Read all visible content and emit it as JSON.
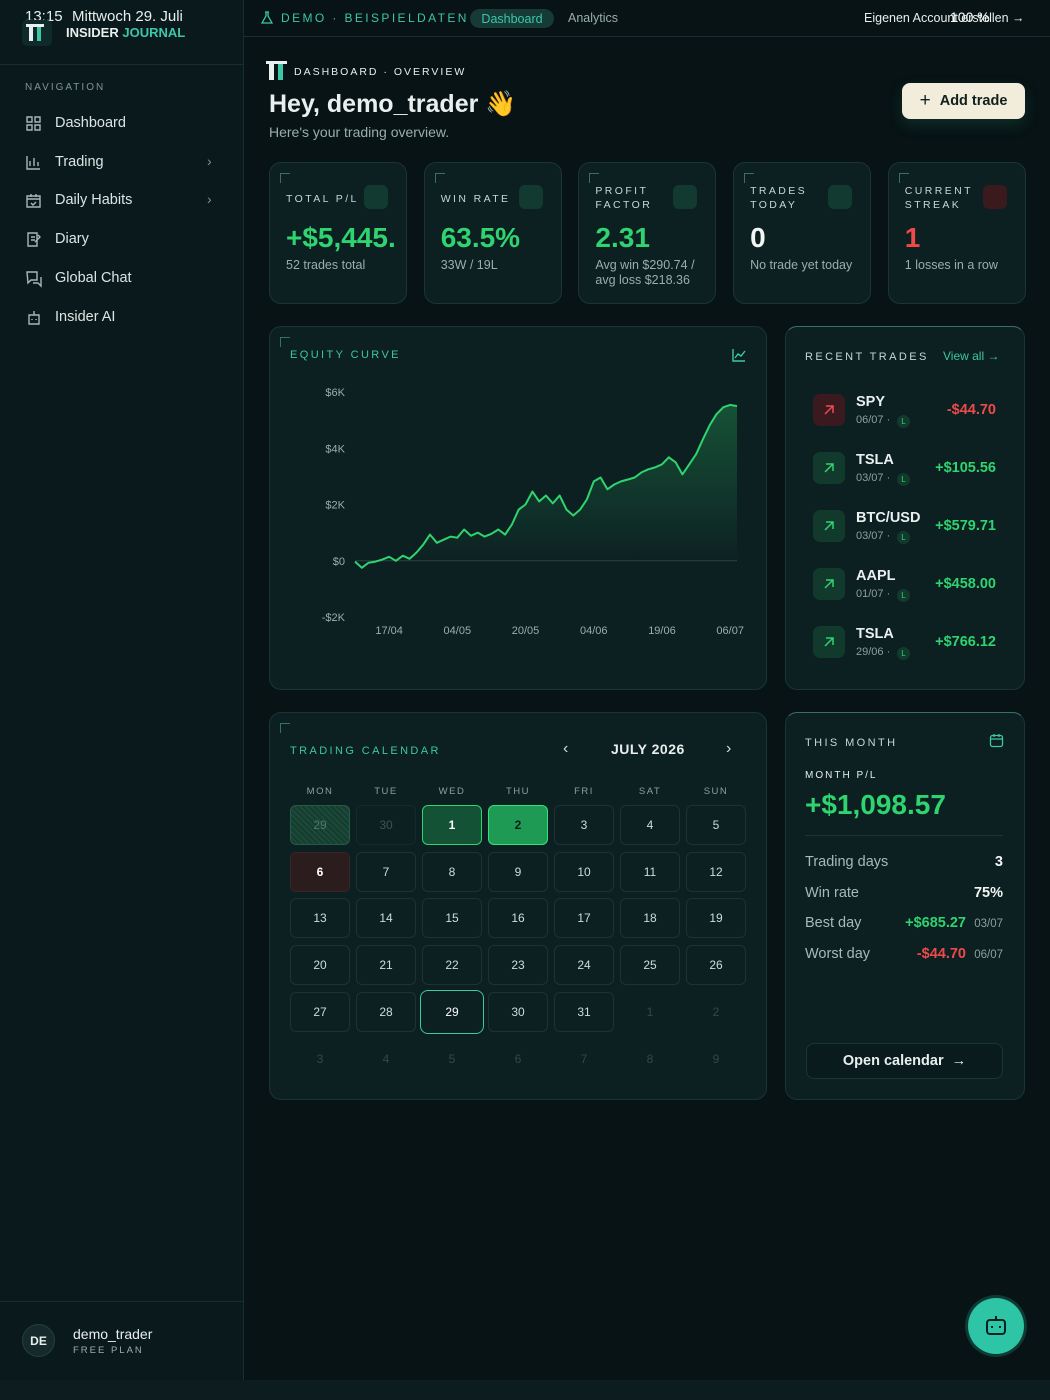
{
  "status": {
    "time": "13:15",
    "date": "Mittwoch 29. Juli",
    "battery": "100 %"
  },
  "brand": {
    "first": "INSIDER",
    "second": "JOURNAL"
  },
  "nav": {
    "section": "NAVIGATION",
    "items": [
      "Dashboard",
      "Trading",
      "Daily Habits",
      "Diary",
      "Global Chat",
      "Insider AI"
    ]
  },
  "user": {
    "initials": "DE",
    "name": "demo_trader",
    "plan": "FREE PLAN"
  },
  "topbar": {
    "demo": "DEMO · BEISPIELDATEN",
    "tabs": [
      "Dashboard",
      "Analytics"
    ],
    "account": "Eigenen Account erstellen"
  },
  "header": {
    "breadcrumb": "DASHBOARD · OVERVIEW",
    "greeting": "Hey, demo_trader 👋",
    "subtitle": "Here's your trading overview.",
    "button": "Add trade"
  },
  "stats": [
    {
      "label": "TOTAL P/L",
      "value": "+$5,445.",
      "sub": "52 trades total",
      "tone": "green"
    },
    {
      "label": "WIN RATE",
      "value": "63.5%",
      "sub": "33W / 19L",
      "tone": "green"
    },
    {
      "label": "PROFIT FACTOR",
      "value": "2.31",
      "sub": "Avg win $290.74 / avg loss $218.36",
      "tone": "green"
    },
    {
      "label": "TRADES TODAY",
      "value": "0",
      "sub": "No trade yet today",
      "tone": "white"
    },
    {
      "label": "CURRENT STREAK",
      "value": "1",
      "sub": "1 losses in a row",
      "tone": "red"
    }
  ],
  "chart_data": {
    "type": "line",
    "title": "EQUITY CURVE",
    "categories": [
      null,
      null,
      null,
      null,
      null,
      "17/04",
      null,
      null,
      null,
      null,
      null,
      null,
      null,
      null,
      null,
      "04/05",
      null,
      null,
      null,
      null,
      null,
      null,
      null,
      null,
      null,
      "20/05",
      null,
      null,
      null,
      null,
      null,
      null,
      null,
      null,
      null,
      "04/06",
      null,
      null,
      null,
      null,
      null,
      null,
      null,
      null,
      null,
      "19/06",
      null,
      null,
      null,
      null,
      null,
      null,
      null,
      null,
      null,
      "06/07",
      null
    ],
    "values": [
      -30,
      -250,
      -70,
      -30,
      40,
      140,
      0,
      180,
      70,
      290,
      570,
      930,
      640,
      750,
      860,
      820,
      1110,
      890,
      1000,
      860,
      960,
      1110,
      930,
      1290,
      1820,
      2000,
      2460,
      2110,
      2320,
      2040,
      2320,
      1820,
      1610,
      1820,
      2180,
      2820,
      2960,
      2540,
      2710,
      2820,
      2890,
      2960,
      3140,
      3250,
      3320,
      3430,
      3680,
      3500,
      3070,
      3430,
      3790,
      4320,
      4820,
      5210,
      5460,
      5540,
      5500
    ],
    "color": "#2fd36f",
    "ylim": [
      -2000,
      6000
    ],
    "yticks": [
      {
        "value": -2000,
        "label": "-$2K"
      },
      {
        "value": 0,
        "label": "$0"
      },
      {
        "value": 2000,
        "label": "$2K"
      },
      {
        "value": 4000,
        "label": "$4K"
      },
      {
        "value": 6000,
        "label": "$6K"
      }
    ],
    "grid": false
  },
  "recent": {
    "title": "RECENT TRADES",
    "link": "View all",
    "trades": [
      {
        "symbol": "SPY",
        "date": "06/07 ·",
        "tag": "L",
        "pnl": "-$44.70",
        "result": "loss"
      },
      {
        "symbol": "TSLA",
        "date": "03/07 ·",
        "tag": "L",
        "pnl": "+$105.56",
        "result": "win"
      },
      {
        "symbol": "BTC/USD",
        "date": "03/07 ·",
        "tag": "L",
        "pnl": "+$579.71",
        "result": "win"
      },
      {
        "symbol": "AAPL",
        "date": "01/07 ·",
        "tag": "L",
        "pnl": "+$458.00",
        "result": "win"
      },
      {
        "symbol": "TSLA",
        "date": "29/06 ·",
        "tag": "L",
        "pnl": "+$766.12",
        "result": "win"
      }
    ]
  },
  "calendar": {
    "title": "TRADING CALENDAR",
    "month": "JULY 2026",
    "weekdays": [
      "MON",
      "TUE",
      "WED",
      "THU",
      "FRI",
      "SAT",
      "SUN"
    ],
    "days": [
      29,
      30,
      1,
      2,
      3,
      4,
      5,
      6,
      7,
      8,
      9,
      10,
      11,
      12,
      13,
      14,
      15,
      16,
      17,
      18,
      19,
      20,
      21,
      22,
      23,
      24,
      25,
      26,
      27,
      28,
      29,
      30,
      31,
      1,
      2,
      3,
      4,
      5,
      6,
      7,
      8,
      9
    ],
    "states": [
      "prev-win",
      "prev",
      "win",
      "win-strong",
      "day",
      "day",
      "day",
      "loss",
      "day",
      "day",
      "day",
      "day",
      "day",
      "day",
      "day",
      "day",
      "day",
      "day",
      "day",
      "day",
      "day",
      "day",
      "day",
      "day",
      "day",
      "day",
      "day",
      "day",
      "day",
      "day",
      "today",
      "day",
      "day",
      "next",
      "next",
      "next",
      "next",
      "next",
      "next",
      "next",
      "next",
      "next"
    ]
  },
  "month": {
    "title": "THIS MONTH",
    "label": "MONTH P/L",
    "value": "+$1,098.57",
    "rows": [
      {
        "name": "Trading days",
        "value": "3",
        "tone": "white"
      },
      {
        "name": "Win rate",
        "value": "75%",
        "tone": "white"
      },
      {
        "name": "Best day",
        "value": "+$685.27",
        "date": "03/07",
        "tone": "green"
      },
      {
        "name": "Worst day",
        "value": "-$44.70",
        "date": "06/07",
        "tone": "red"
      }
    ],
    "button": "Open calendar"
  }
}
